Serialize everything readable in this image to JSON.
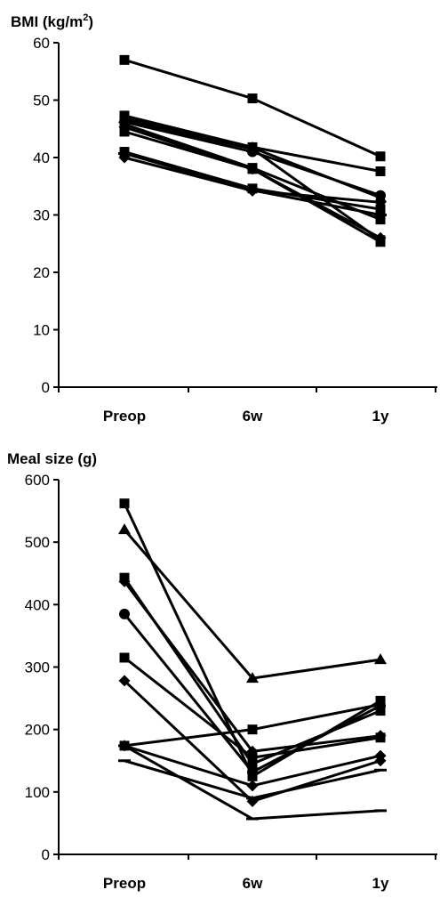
{
  "chart_data": [
    {
      "type": "line",
      "title": "BMI (kg/m²)",
      "title_main": "BMI (kg/m",
      "title_sup": "2",
      "title_close": ")",
      "categories": [
        "Preop",
        "6w",
        "1y"
      ],
      "ylim": [
        0,
        60
      ],
      "yticks": [
        0,
        10,
        20,
        30,
        40,
        50,
        60
      ],
      "grid": false,
      "legend": "none",
      "series": [
        {
          "marker": "square",
          "values": [
            57,
            50.3,
            40.2
          ]
        },
        {
          "marker": "square",
          "values": [
            47.3,
            41.8,
            37.6
          ]
        },
        {
          "marker": "triangle",
          "values": [
            46.8,
            41.7,
            33
          ]
        },
        {
          "marker": "circle",
          "values": [
            46.2,
            41,
            33.4
          ]
        },
        {
          "marker": "square",
          "values": [
            45.8,
            38.2,
            29.2
          ]
        },
        {
          "marker": "diamond",
          "values": [
            45.3,
            38,
            26
          ]
        },
        {
          "marker": "square",
          "values": [
            44.5,
            38,
            25.3
          ]
        },
        {
          "marker": "square",
          "values": [
            41,
            34.6,
            31
          ]
        },
        {
          "marker": "dash",
          "values": [
            40.7,
            34.3,
            30
          ]
        },
        {
          "marker": "diamond",
          "values": [
            40,
            34.2,
            32.2
          ]
        },
        {
          "marker": "square",
          "values": [
            46.5,
            41.5,
            25.6
          ]
        }
      ]
    },
    {
      "type": "line",
      "title": "Meal size (g)",
      "categories": [
        "Preop",
        "6w",
        "1y"
      ],
      "ylim": [
        0,
        600
      ],
      "yticks": [
        0,
        100,
        200,
        300,
        400,
        500,
        600
      ],
      "grid": false,
      "legend": "none",
      "series": [
        {
          "marker": "square",
          "values": [
            562,
            125,
            246
          ]
        },
        {
          "marker": "triangle",
          "values": [
            520,
            282,
            312
          ]
        },
        {
          "marker": "square",
          "values": [
            443,
            145,
            230
          ]
        },
        {
          "marker": "diamond",
          "values": [
            437,
            165,
            190
          ]
        },
        {
          "marker": "circle",
          "values": [
            385,
            132,
            238
          ]
        },
        {
          "marker": "square",
          "values": [
            315,
            155,
            187
          ]
        },
        {
          "marker": "diamond",
          "values": [
            278,
            85,
            150
          ]
        },
        {
          "marker": "square",
          "values": [
            174,
            200,
            240
          ]
        },
        {
          "marker": "dash",
          "values": [
            174,
            57,
            70
          ]
        },
        {
          "marker": "diamond",
          "values": [
            174,
            110,
            158
          ]
        },
        {
          "marker": "dash",
          "values": [
            150,
            90,
            135
          ]
        }
      ]
    }
  ]
}
